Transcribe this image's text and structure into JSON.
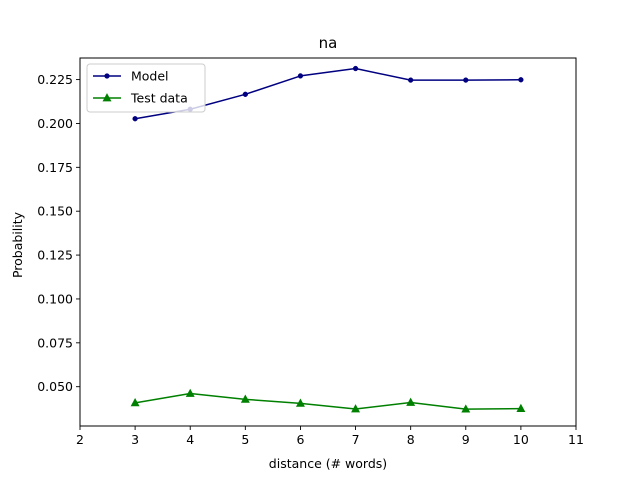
{
  "chart_data": {
    "type": "line",
    "title": "na",
    "xlabel": "distance (# words)",
    "ylabel": "Probability",
    "xlim": [
      2,
      11
    ],
    "ylim": [
      0.0276,
      0.2373
    ],
    "xticks": [
      2,
      3,
      4,
      5,
      6,
      7,
      8,
      9,
      10,
      11
    ],
    "yticks": [
      0.05,
      0.075,
      0.1,
      0.125,
      0.15,
      0.175,
      0.2,
      0.225
    ],
    "ytick_labels": [
      "0.050",
      "0.075",
      "0.100",
      "0.125",
      "0.150",
      "0.175",
      "0.200",
      "0.225"
    ],
    "grid": false,
    "legend_position": "top-left",
    "series": [
      {
        "name": "Model",
        "color": "#000080",
        "marker": "circle",
        "x": [
          3,
          4,
          5,
          6,
          7,
          8,
          9,
          10
        ],
        "values": [
          0.2027,
          0.2081,
          0.2166,
          0.2271,
          0.2313,
          0.2247,
          0.2247,
          0.2249
        ]
      },
      {
        "name": "Test data",
        "color": "#008000",
        "marker": "triangle",
        "x": [
          3,
          4,
          5,
          6,
          7,
          8,
          9,
          10
        ],
        "values": [
          0.0408,
          0.0461,
          0.0428,
          0.0405,
          0.0373,
          0.041,
          0.0372,
          0.0375
        ]
      }
    ]
  }
}
